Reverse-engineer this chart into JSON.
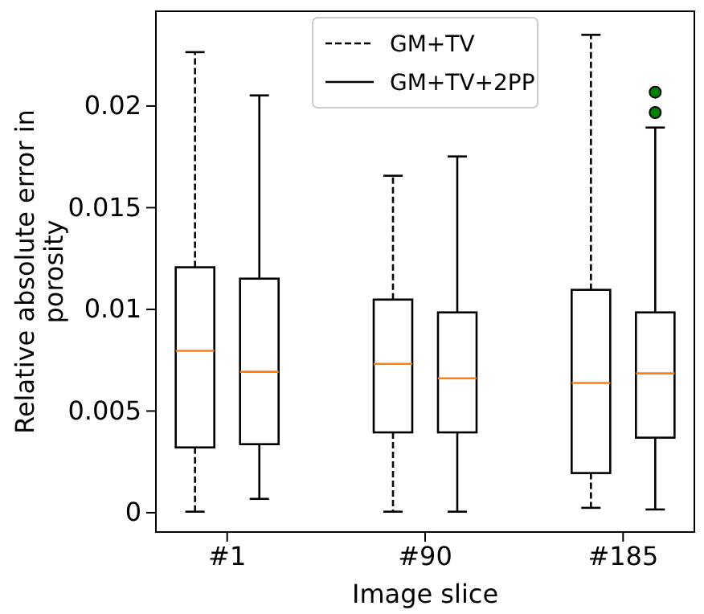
{
  "chart_data": {
    "type": "box",
    "xlabel": "Image slice",
    "ylabel": "Relative absolute error in porosity",
    "categories": [
      "#1",
      "#90",
      "#185"
    ],
    "ylim": [
      -0.00095,
      0.02466
    ],
    "yticks": [
      0,
      0.005,
      0.01,
      0.015,
      0.02
    ],
    "legend": "top",
    "grid": false,
    "series": [
      {
        "name": "GM+TV",
        "color": "#000000",
        "line_style": "dashed",
        "boxes": [
          {
            "low": 5e-05,
            "q1": 0.00321,
            "median": 0.00796,
            "q3": 0.01207,
            "high": 0.02265
          },
          {
            "low": 5e-05,
            "q1": 0.00395,
            "median": 0.00732,
            "q3": 0.01048,
            "high": 0.01657
          },
          {
            "low": 0.00024,
            "q1": 0.00195,
            "median": 0.00638,
            "q3": 0.01096,
            "high": 0.0235
          }
        ]
      },
      {
        "name": "GM+TV+2PP",
        "color": "#000000",
        "line_style": "solid",
        "boxes": [
          {
            "low": 0.00068,
            "q1": 0.00337,
            "median": 0.00693,
            "q3": 0.01151,
            "high": 0.02052
          },
          {
            "low": 5e-05,
            "q1": 0.00395,
            "median": 0.00661,
            "q3": 0.00985,
            "high": 0.01752
          },
          {
            "low": 0.00016,
            "q1": 0.00369,
            "median": 0.00685,
            "q3": 0.00985,
            "high": 0.01894,
            "outliers": [
              0.01968,
              0.02068
            ]
          }
        ]
      }
    ]
  }
}
